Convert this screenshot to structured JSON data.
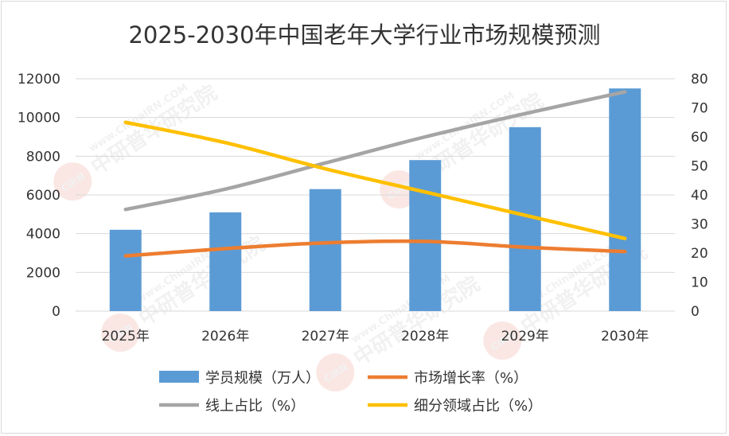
{
  "chart_data": {
    "type": "bar",
    "title": "2025-2030年中国老年大学行业市场规模预测",
    "categories": [
      "2025年",
      "2026年",
      "2027年",
      "2028年",
      "2029年",
      "2030年"
    ],
    "y_left": {
      "min": 0,
      "max": 12000,
      "step": 2000,
      "ticks": [
        "0",
        "2000",
        "4000",
        "6000",
        "8000",
        "10000",
        "12000"
      ]
    },
    "y_right": {
      "min": 0,
      "max": 80,
      "step": 10,
      "ticks": [
        "0",
        "10",
        "20",
        "30",
        "40",
        "50",
        "60",
        "70",
        "80"
      ]
    },
    "grid": true,
    "legend_position": "bottom",
    "series": [
      {
        "name": "学员规模（万人）",
        "kind": "bar",
        "axis": "left",
        "color": "#5b9bd5",
        "values": [
          4200,
          5100,
          6300,
          7800,
          9500,
          11500
        ]
      },
      {
        "name": "市场增长率（%）",
        "kind": "line",
        "axis": "right",
        "color": "#ed7d31",
        "values": [
          19,
          21.5,
          23.5,
          24,
          22,
          20.5
        ]
      },
      {
        "name": "线上占比（%）",
        "kind": "line",
        "axis": "right",
        "color": "#a5a5a5",
        "values": [
          35,
          42,
          51,
          60,
          68,
          75.5
        ]
      },
      {
        "name": "细分领域占比（%）",
        "kind": "line",
        "axis": "right",
        "color": "#ffc000",
        "values": [
          65,
          58,
          49,
          41,
          33,
          25
        ]
      }
    ]
  },
  "watermark": {
    "logo": "CIRN",
    "name": "中研普华研究院",
    "url": "www.ChinaIRN.COM"
  }
}
